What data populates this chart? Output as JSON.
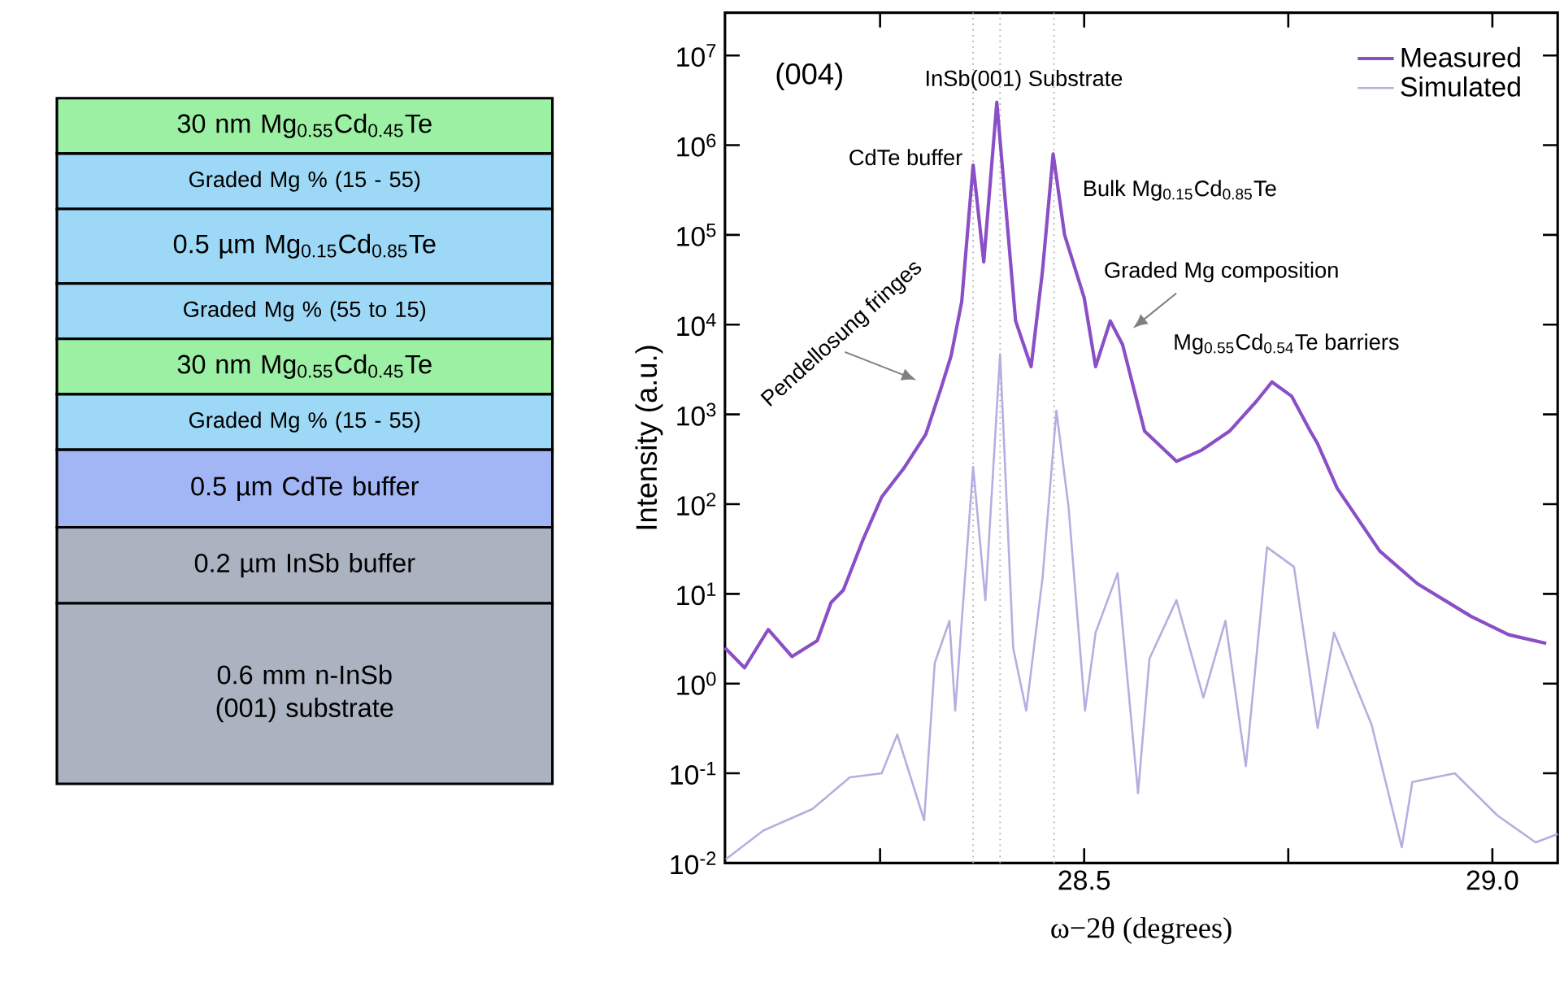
{
  "chart_data": [
    {
      "type": "other",
      "categories": [
        "30 nm Mg$_{0.55}$Cd$_{0.45}$Te",
        "Graded Mg % (15 - 55)",
        "0.5 µm Mg$_{0.15}$Cd$_{0.85}$Te",
        "Graded Mg % (55 to 15)",
        "30 nm Mg$_{0.55}$Cd$_{0.45}$Te",
        "Graded Mg % (15 - 55)",
        "0.5 µm CdTe buffer",
        "0.2 µm InSb buffer",
        "0.6 mm n-InSb (001) substrate"
      ],
      "colors": [
        "#9cf0a4",
        "#9dd9f6",
        "#9dd9f6",
        "#9dd9f6",
        "#9cf0a4",
        "#9dd9f6",
        "#a2b5f4",
        "#abb2c0",
        "#abb2c0"
      ]
    },
    {
      "type": "line",
      "xlabel": "ω−2θ (degrees)",
      "ylabel": "Intensity (a.u.)",
      "log": "y",
      "legend": "top right",
      "xlim": [
        28.06,
        29.08
      ],
      "ylim": [
        0.01,
        30000000
      ],
      "xticks": [
        {
          "value": 28.25,
          "label": null
        },
        28.5,
        {
          "value": 28.75,
          "label": null
        },
        {
          "value": 29.0,
          "label": "29.0"
        }
      ],
      "yticks": [
        {
          "value": 0.01,
          "label": "10$^{-2}$"
        },
        {
          "value": 0.1,
          "label": "10$^{-1}$"
        },
        {
          "value": 1,
          "label": "10$^{0}$"
        },
        {
          "value": 10,
          "label": "10$^{1}$"
        },
        {
          "value": 100,
          "label": "10$^{2}$"
        },
        {
          "value": 1000,
          "label": "10$^{3}$"
        },
        {
          "value": 10000,
          "label": "10$^{4}$"
        },
        {
          "value": 100000,
          "label": "10$^{5}$"
        },
        {
          "value": 1000000,
          "label": "10$^{6}$"
        },
        {
          "value": 10000000,
          "label": "10$^{7}$"
        }
      ],
      "ref_lines": [
        {
          "axis": "x",
          "value": 28.364,
          "color": "#b0b0b0",
          "line_style": "dotted"
        },
        {
          "axis": "x",
          "value": 28.397,
          "color": "#b0b0b0",
          "line_style": "dotted"
        },
        {
          "axis": "x",
          "value": 28.463,
          "color": "#b0b0b0",
          "line_style": "dotted"
        }
      ],
      "annotations": [
        "(004)",
        {
          "text": "InSb(001) Substrate",
          "x": 28.397,
          "y": 3000000
        },
        {
          "text": "CdTe buffer",
          "x": 28.364,
          "y": 600000
        },
        {
          "text": "Bulk Mg$_{0.15}$Cd$_{0.85}$Te",
          "x": 28.462,
          "y": 800000
        },
        "Graded Mg composition",
        {
          "text": "Mg$_{0.55}$Cd$_{0.54}$Te barriers",
          "x": 28.73,
          "y": 2300
        },
        "Pendellosung fringes"
      ],
      "series": [
        {
          "name": "Measured",
          "color": "#8a4fc6",
          "x": [
            28.06,
            28.084,
            28.113,
            28.142,
            28.173,
            28.19,
            28.205,
            28.229,
            28.252,
            28.279,
            28.306,
            28.325,
            28.337,
            28.35,
            28.364,
            28.377,
            28.393,
            28.416,
            28.435,
            28.449,
            28.462,
            28.476,
            28.5,
            28.514,
            28.532,
            28.547,
            28.574,
            28.613,
            28.644,
            28.678,
            28.711,
            28.73,
            28.754,
            28.777,
            28.786,
            28.81,
            28.862,
            28.908,
            28.974,
            29.02,
            29.066
          ],
          "values": [
            2.5,
            1.5,
            4,
            2,
            3,
            8,
            11,
            40,
            120,
            250,
            600,
            2000,
            4500,
            18000,
            600000,
            50000,
            3000000,
            11000,
            3400,
            40000,
            800000,
            100000,
            20000,
            3400,
            11000,
            6000,
            650,
            300,
            400,
            650,
            1400,
            2300,
            1600,
            650,
            470,
            150,
            30,
            13,
            5.6,
            3.5,
            2.8
          ]
        },
        {
          "name": "Simulated",
          "color": "#b8addf",
          "x": [
            28.061,
            28.107,
            28.167,
            28.213,
            28.252,
            28.271,
            28.304,
            28.317,
            28.335,
            28.342,
            28.364,
            28.379,
            28.397,
            28.413,
            28.429,
            28.449,
            28.466,
            28.481,
            28.501,
            28.514,
            28.541,
            28.566,
            28.58,
            28.613,
            28.646,
            28.673,
            28.698,
            28.724,
            28.757,
            28.786,
            28.806,
            28.852,
            28.889,
            28.902,
            28.954,
            29.006,
            29.053,
            29.08
          ],
          "values": [
            0.011,
            0.023,
            0.04,
            0.09,
            0.1,
            0.27,
            0.03,
            1.7,
            5,
            0.5,
            260,
            8.5,
            4700,
            2.5,
            0.5,
            15,
            1100,
            90,
            0.5,
            3.7,
            17,
            0.06,
            1.9,
            8.5,
            0.7,
            5,
            0.12,
            33,
            20,
            0.32,
            3.7,
            0.35,
            0.015,
            0.08,
            0.1,
            0.034,
            0.017,
            0.021
          ]
        }
      ]
    }
  ]
}
